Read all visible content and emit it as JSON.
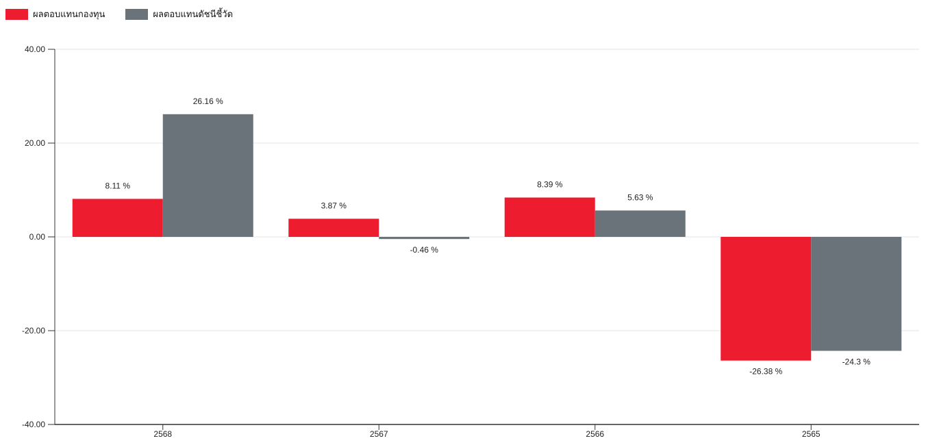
{
  "chart_data": {
    "type": "bar",
    "categories": [
      "2568",
      "2567",
      "2566",
      "2565"
    ],
    "series": [
      {
        "name": "ผลตอบแทนกองทุน",
        "color": "#ED1C2E",
        "values": [
          8.11,
          3.87,
          8.39,
          -26.38
        ],
        "labels": [
          "8.11 %",
          "3.87 %",
          "8.39 %",
          "-26.38 %"
        ]
      },
      {
        "name": "ผลตอบแทนดัชนีชี้วัด",
        "color": "#6A7379",
        "values": [
          26.16,
          -0.46,
          5.63,
          -24.3
        ],
        "labels": [
          "26.16 %",
          "-0.46 %",
          "5.63 %",
          "-24.3 %"
        ]
      }
    ],
    "yticks": [
      "40.00",
      "20.00",
      "0.00",
      "-20.00",
      "-40.00"
    ],
    "ylim": [
      -40,
      40
    ],
    "grid": true,
    "legend_position": "top-left"
  }
}
